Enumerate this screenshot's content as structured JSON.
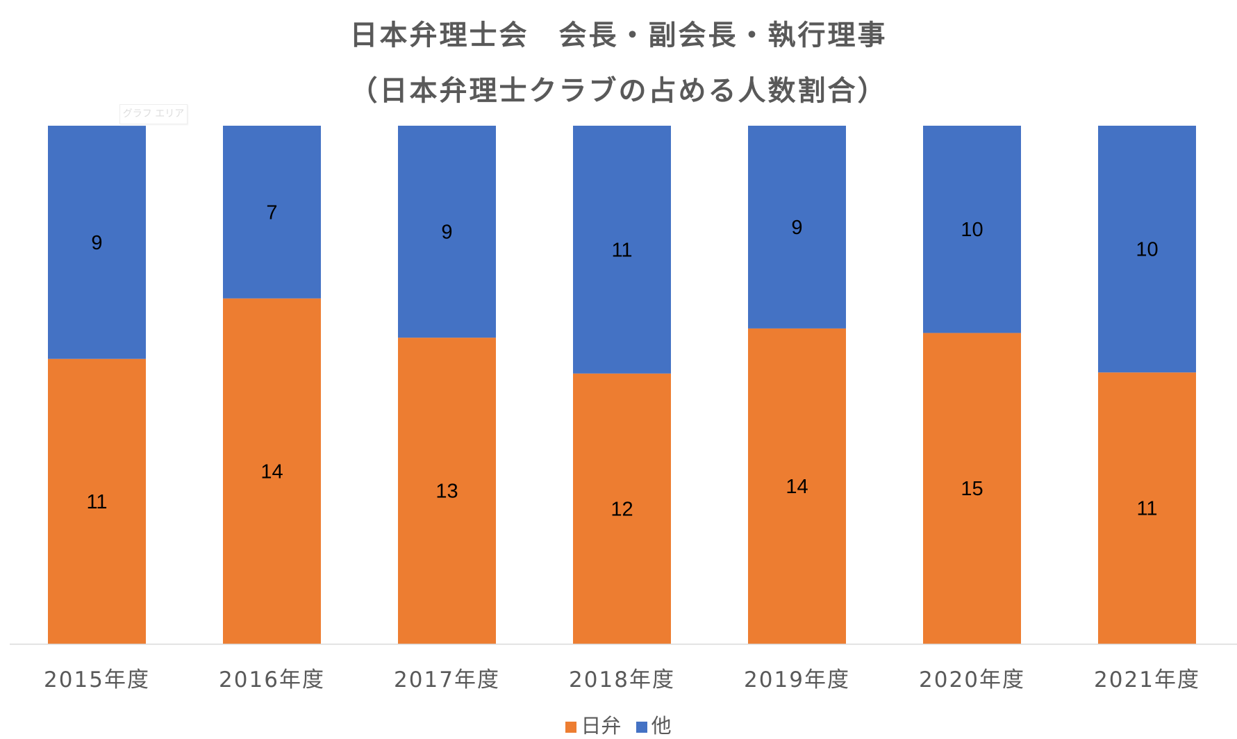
{
  "chart_data": {
    "type": "bar",
    "stacked": "percent",
    "title": [
      "日本弁理士会　会長・副会長・執行理事",
      "（日本弁理士クラブの占める人数割合）"
    ],
    "categories": [
      "2015年度",
      "2016年度",
      "2017年度",
      "2018年度",
      "2019年度",
      "2020年度",
      "2021年度"
    ],
    "series": [
      {
        "name": "日弁",
        "color": "#ED7D31",
        "values": [
          11,
          14,
          13,
          12,
          14,
          15,
          11
        ]
      },
      {
        "name": "他",
        "color": "#4472C4",
        "values": [
          9,
          7,
          9,
          11,
          9,
          10,
          10
        ]
      }
    ],
    "data_labels": true,
    "y_axis_visible": false,
    "grid": false,
    "legend": "bottom"
  },
  "tooltip": "グラフ エリア"
}
